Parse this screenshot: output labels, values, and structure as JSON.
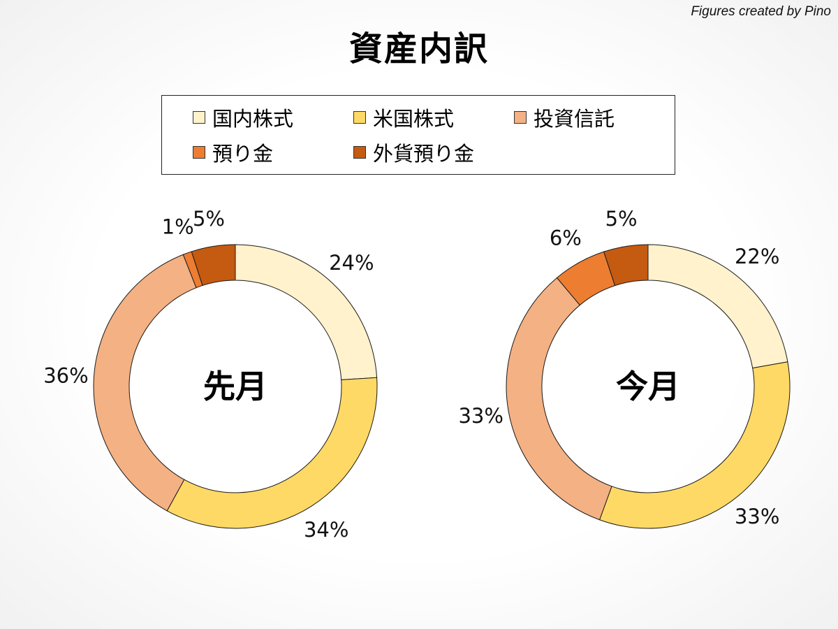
{
  "credit": "Figures created by Pino",
  "title": "資産内訳",
  "legend": {
    "items": [
      {
        "label": "国内株式",
        "color": "#FFF2CC"
      },
      {
        "label": "米国株式",
        "color": "#FFD966"
      },
      {
        "label": "投資信託",
        "color": "#F4B183"
      },
      {
        "label": "預り金",
        "color": "#ED7D31"
      },
      {
        "label": "外貨預り金",
        "color": "#C55A11"
      }
    ]
  },
  "chart_data": [
    {
      "type": "donut",
      "center_label": "先月",
      "categories": [
        "国内株式",
        "米国株式",
        "投資信託",
        "預り金",
        "外貨預り金"
      ],
      "values": [
        24,
        34,
        36,
        1,
        5
      ],
      "labels": [
        "24%",
        "34%",
        "36%",
        "1%",
        "5%"
      ],
      "colors": [
        "#FFF2CC",
        "#FFD966",
        "#F4B183",
        "#ED7D31",
        "#C55A11"
      ]
    },
    {
      "type": "donut",
      "center_label": "今月",
      "categories": [
        "国内株式",
        "米国株式",
        "投資信託",
        "預り金",
        "外貨預り金"
      ],
      "values": [
        22,
        33,
        33,
        6,
        5
      ],
      "labels": [
        "22%",
        "33%",
        "33%",
        "6%",
        "5%"
      ],
      "colors": [
        "#FFF2CC",
        "#FFD966",
        "#F4B183",
        "#ED7D31",
        "#C55A11"
      ]
    }
  ]
}
